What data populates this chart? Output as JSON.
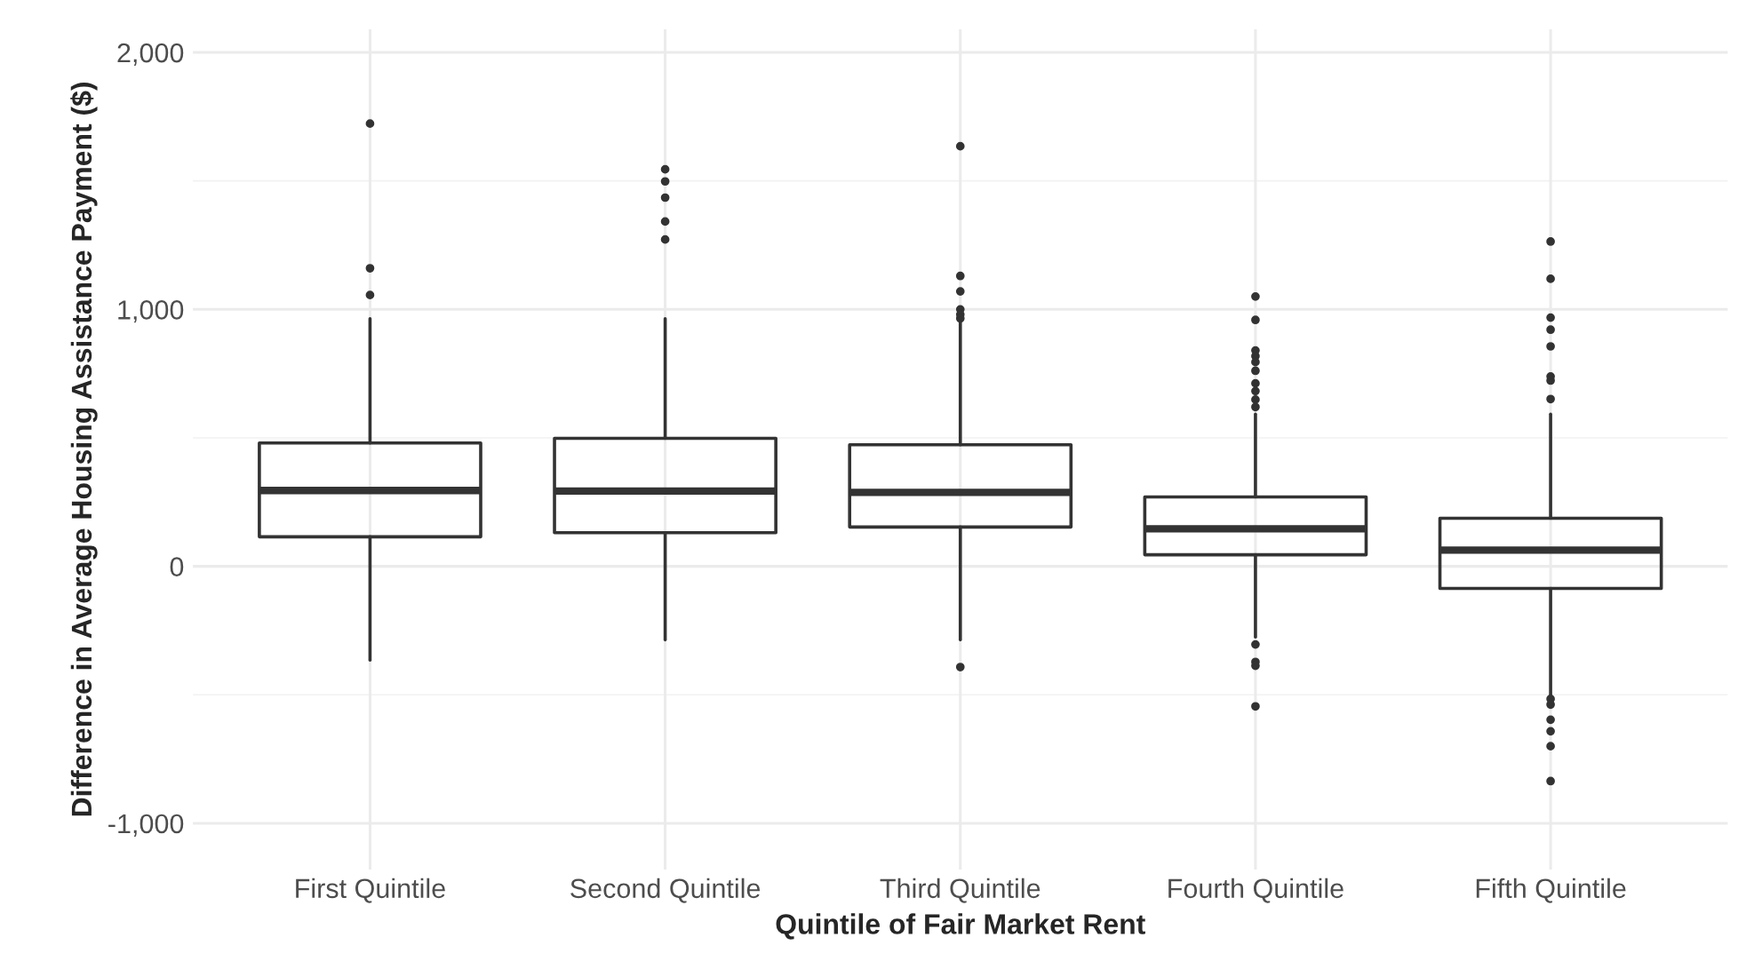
{
  "chart_data": {
    "type": "box",
    "xlabel": "Quintile of Fair Market Rent",
    "ylabel": "Difference in Average Housing Assistance Payment ($)",
    "categories": [
      "First Quintile",
      "Second Quintile",
      "Third Quintile",
      "Fourth Quintile",
      "Fifth Quintile"
    ],
    "boxes": [
      {
        "low": -365,
        "q1": 115,
        "median": 295,
        "q3": 480,
        "high": 964,
        "outliers": [
          1723,
          1160,
          1056
        ]
      },
      {
        "low": -286,
        "q1": 131,
        "median": 293,
        "q3": 498,
        "high": 964,
        "outliers": [
          1545,
          1498,
          1435,
          1342,
          1272
        ]
      },
      {
        "low": -286,
        "q1": 153,
        "median": 288,
        "q3": 473,
        "high": 950,
        "outliers": [
          1635,
          1130,
          1070,
          1000,
          980,
          965,
          -392
        ]
      },
      {
        "low": -275,
        "q1": 45,
        "median": 146,
        "q3": 270,
        "high": 592,
        "outliers": [
          1050,
          959,
          840,
          818,
          795,
          761,
          712,
          682,
          649,
          620,
          -304,
          -372,
          -387,
          -545
        ]
      },
      {
        "low": -500,
        "q1": -86,
        "median": 63,
        "q3": 187,
        "high": 592,
        "outliers": [
          1264,
          1119,
          968,
          921,
          856,
          739,
          723,
          651,
          -516,
          -538,
          -597,
          -642,
          -700,
          -836
        ]
      }
    ],
    "color": "#333333",
    "ylim": [
      -1180,
      2090
    ],
    "yticks": [
      {
        "value": -1000,
        "label": "-1,000"
      },
      0,
      {
        "value": 1000,
        "label": "1,000"
      },
      {
        "value": 2000,
        "label": "2,000"
      }
    ],
    "grid": true
  }
}
